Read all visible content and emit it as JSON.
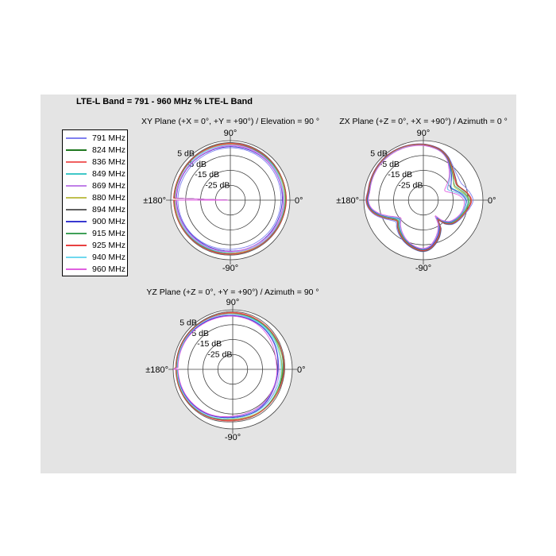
{
  "window": {
    "background": "#ffffff",
    "panel_color": "#e4e4e4"
  },
  "title": "LTE-L Band = 791 - 960 MHz % LTE-L Band",
  "legend": {
    "entries": [
      {
        "label": "791 MHz",
        "color": "#8080f0"
      },
      {
        "label": "824 MHz",
        "color": "#207820"
      },
      {
        "label": "836 MHz",
        "color": "#f06060"
      },
      {
        "label": "849 MHz",
        "color": "#40c8c8"
      },
      {
        "label": "869 MHz",
        "color": "#c080e8"
      },
      {
        "label": "880 MHz",
        "color": "#c0c050"
      },
      {
        "label": "894 MHz",
        "color": "#606060"
      },
      {
        "label": "900 MHz",
        "color": "#3838d0"
      },
      {
        "label": "915 MHz",
        "color": "#40a058"
      },
      {
        "label": "925 MHz",
        "color": "#e84040"
      },
      {
        "label": "940 MHz",
        "color": "#70d8ee"
      },
      {
        "label": "960 MHz",
        "color": "#e060e0"
      }
    ]
  },
  "chart_data": [
    {
      "type": "line",
      "subtype": "polar-radiation-pattern",
      "plane": "XY",
      "title": "XY Plane (+X = 0°, +Y = +90°) / Elevation = 90 °",
      "radial_axis": {
        "unit": "dB",
        "min_db": -35,
        "max_db": 5,
        "rings_db": [
          5,
          -5,
          -15,
          -25
        ],
        "ring_labels": [
          "5 dB",
          "-5 dB",
          "-15 dB",
          "-25 dB"
        ]
      },
      "angle_labels": {
        "top": "90°",
        "right": "0°",
        "left": "±180°",
        "bottom": "-90°"
      },
      "shape": {
        "angles_deg": [
          -180,
          -150,
          -120,
          -90,
          -60,
          -30,
          0,
          30,
          60,
          90,
          120,
          150
        ],
        "db": [
          2.2,
          1.6,
          0.9,
          0.5,
          0.7,
          1.1,
          1.5,
          1.8,
          2.2,
          2.4,
          2.2,
          2.0
        ],
        "spread_db": [
          0.8,
          0.8,
          0.9,
          1.0,
          0.9,
          0.9,
          1.0,
          0.9,
          0.9,
          0.9,
          0.9,
          0.8
        ]
      },
      "freq_offsets_db": [
        -2.5,
        0.6,
        0.9,
        0.1,
        -0.4,
        0.4,
        1.2,
        -1.5,
        0.5,
        0.8,
        -0.8,
        -1.1
      ]
    },
    {
      "type": "line",
      "subtype": "polar-radiation-pattern",
      "plane": "ZX",
      "title": "ZX Plane (+Z = 0°, +X = +90°) / Azimuth = 0 °",
      "radial_axis": {
        "unit": "dB",
        "min_db": -35,
        "max_db": 5,
        "rings_db": [
          5,
          -5,
          -15,
          -25
        ],
        "ring_labels": [
          "5 dB",
          "-5 dB",
          "-15 dB",
          "-25 dB"
        ]
      },
      "angle_labels": {
        "top": "90°",
        "right": "0°",
        "left": "±180°",
        "bottom": "-90°"
      },
      "shape": {
        "angles_deg": [
          -172,
          -164,
          -156,
          -148,
          -141,
          -134,
          -126,
          -115,
          -103,
          -92,
          -84,
          -76,
          -66,
          -58,
          -53,
          -48,
          -40,
          -30,
          -18,
          -8,
          0,
          8,
          16,
          24,
          33,
          42,
          52,
          60,
          70,
          80,
          90,
          102,
          114,
          126,
          138,
          150,
          162,
          171,
          180
        ],
        "db": [
          1.5,
          -2.0,
          -7.0,
          -11.5,
          -13.5,
          -11.0,
          -8.5,
          -5.5,
          -3.0,
          -1.5,
          -2.2,
          -5.0,
          -9.5,
          -14.0,
          -19.5,
          -15.0,
          -11.0,
          -8.8,
          -6.8,
          -5.2,
          -4.6,
          -6.8,
          -10.4,
          -12.8,
          -11.4,
          -8.8,
          -5.6,
          -2.4,
          0.2,
          1.4,
          2.2,
          2.7,
          3.1,
          3.3,
          3.2,
          2.9,
          2.5,
          2.2,
          2.8
        ],
        "spread_db": [
          0.6,
          0.9,
          1.1,
          1.2,
          1.2,
          1.1,
          0.95,
          0.8,
          0.7,
          0.7,
          0.75,
          0.9,
          1.1,
          1.25,
          1.35,
          1.25,
          1.05,
          0.95,
          0.95,
          1.5,
          2.0,
          2.4,
          3.2,
          3.4,
          2.6,
          1.6,
          1.0,
          0.6,
          0.45,
          0.4,
          0.35,
          0.35,
          0.35,
          0.4,
          0.4,
          0.4,
          0.45,
          0.5,
          0.55
        ]
      },
      "freq_offsets_db": [
        1.5,
        0.5,
        0.8,
        -0.4,
        -1.0,
        0.2,
        1.0,
        -0.7,
        0.1,
        0.6,
        -1.3,
        -1.7
      ]
    },
    {
      "type": "line",
      "subtype": "polar-radiation-pattern",
      "plane": "YZ",
      "title": "YZ Plane (+Z = 0°, +Y = +90°) / Azimuth = 90 °",
      "radial_axis": {
        "unit": "dB",
        "min_db": -35,
        "max_db": 5,
        "rings_db": [
          5,
          -5,
          -15,
          -25
        ],
        "ring_labels": [
          "5 dB",
          "-5 dB",
          "-15 dB",
          "-25 dB"
        ]
      },
      "angle_labels": {
        "top": "90°",
        "right": "0°",
        "left": "±180°",
        "bottom": "-90°"
      },
      "shape": {
        "angles_deg": [
          -180,
          -150,
          -120,
          -90,
          -60,
          -45,
          -30,
          -15,
          0,
          10,
          30,
          60,
          90,
          120,
          150
        ],
        "db": [
          2.6,
          2.0,
          0.5,
          -1.6,
          -1.6,
          -1.9,
          -2.3,
          -2.5,
          -2.3,
          -2.0,
          -0.8,
          1.2,
          2.3,
          2.6,
          2.9
        ],
        "spread_db": [
          0.5,
          0.55,
          0.8,
          1.1,
          1.2,
          1.3,
          1.5,
          1.6,
          1.7,
          1.7,
          1.4,
          1.1,
          0.9,
          0.6,
          0.5
        ]
      },
      "freq_offsets_db": [
        -1.4,
        0.6,
        0.9,
        0.1,
        -0.9,
        0.3,
        1.5,
        -1.2,
        0.5,
        0.8,
        -0.4,
        -1.9
      ]
    }
  ]
}
